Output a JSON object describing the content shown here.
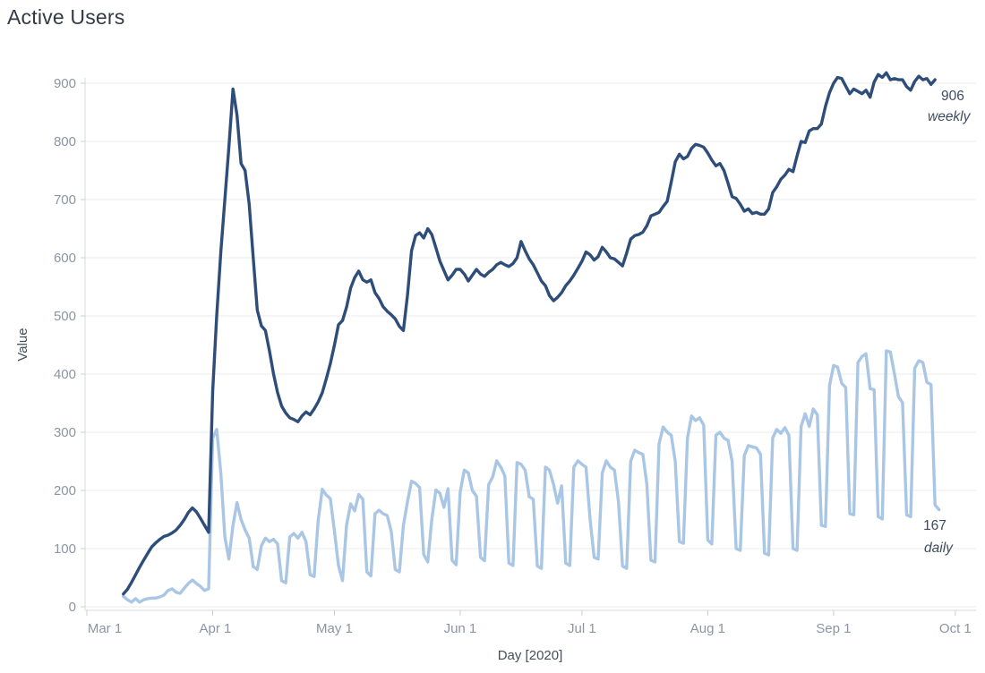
{
  "title": "Active Users",
  "annotations": {
    "weekly": {
      "value": "906",
      "label": "weekly"
    },
    "daily": {
      "value": "167",
      "label": "daily"
    }
  },
  "colors": {
    "weekly_line": "#2e4d78",
    "daily_line": "#a9c6e4",
    "grid": "#ebebeb",
    "axis_line": "#d8d8d8",
    "tick_mark": "#c9cdd3",
    "tick_text": "#8b95a3",
    "axis_title_text": "#444f5a",
    "title_text": "#333b45",
    "annotation_text": "#3f4c60"
  },
  "chart_data": {
    "type": "line",
    "title": "Active Users",
    "xlabel": "Day [2020]",
    "ylabel": "Value",
    "ylim": [
      0,
      950
    ],
    "grid": "horizontal",
    "yticks": [
      0,
      100,
      200,
      300,
      400,
      500,
      600,
      700,
      800,
      900
    ],
    "xticks": [
      {
        "label": "Mar 1",
        "day": 0,
        "label_dx": 20
      },
      {
        "label": "Apr 1",
        "day": 31,
        "label_dx": 3
      },
      {
        "label": "May 1",
        "day": 61,
        "label_dx": 0
      },
      {
        "label": "Jun 1",
        "day": 92,
        "label_dx": 0
      },
      {
        "label": "Jul 1",
        "day": 122,
        "label_dx": 0
      },
      {
        "label": "Aug 1",
        "day": 153,
        "label_dx": 0
      },
      {
        "label": "Sep 1",
        "day": 184,
        "label_dx": 0
      },
      {
        "label": "Oct 1",
        "day": 214,
        "label_dx": 0
      }
    ],
    "x_day0_date": "2020-03-01",
    "series": [
      {
        "name": "daily",
        "color": "#a9c6e4",
        "start_day_offset": 9,
        "end_value": 167,
        "values": [
          18,
          12,
          8,
          14,
          8,
          12,
          14,
          15,
          15,
          17,
          20,
          28,
          31,
          25,
          23,
          32,
          40,
          46,
          40,
          35,
          28,
          31,
          290,
          305,
          230,
          120,
          82,
          140,
          179,
          150,
          132,
          118,
          69,
          64,
          105,
          118,
          112,
          116,
          108,
          45,
          41,
          120,
          126,
          118,
          128,
          112,
          55,
          52,
          148,
          202,
          192,
          186,
          130,
          71,
          45,
          140,
          177,
          165,
          193,
          185,
          60,
          53,
          160,
          166,
          160,
          157,
          130,
          64,
          60,
          140,
          180,
          216,
          212,
          205,
          90,
          77,
          150,
          201,
          195,
          171,
          203,
          80,
          72,
          197,
          235,
          230,
          200,
          190,
          85,
          79,
          210,
          223,
          251,
          240,
          225,
          75,
          71,
          248,
          245,
          235,
          189,
          185,
          70,
          66,
          240,
          235,
          210,
          178,
          208,
          75,
          71,
          240,
          251,
          245,
          240,
          150,
          85,
          82,
          230,
          251,
          240,
          235,
          180,
          70,
          66,
          250,
          269,
          265,
          262,
          210,
          80,
          77,
          280,
          309,
          300,
          295,
          250,
          112,
          109,
          290,
          328,
          320,
          325,
          312,
          115,
          108,
          295,
          300,
          290,
          286,
          250,
          100,
          97,
          260,
          277,
          275,
          273,
          262,
          92,
          89,
          290,
          305,
          298,
          308,
          295,
          100,
          97,
          310,
          332,
          310,
          340,
          330,
          140,
          138,
          380,
          415,
          412,
          384,
          377,
          160,
          158,
          420,
          430,
          435,
          375,
          373,
          155,
          151,
          440,
          438,
          400,
          361,
          351,
          158,
          155,
          410,
          423,
          420,
          386,
          382,
          175,
          167
        ]
      },
      {
        "name": "weekly",
        "color": "#2e4d78",
        "start_day_offset": 9,
        "end_value": 906,
        "values": [
          22,
          30,
          42,
          55,
          68,
          80,
          92,
          103,
          110,
          116,
          121,
          123,
          127,
          132,
          140,
          150,
          162,
          170,
          163,
          152,
          140,
          128,
          370,
          500,
          610,
          700,
          790,
          890,
          845,
          762,
          750,
          692,
          600,
          510,
          483,
          475,
          440,
          400,
          368,
          345,
          333,
          325,
          322,
          318,
          328,
          335,
          330,
          340,
          352,
          368,
          392,
          418,
          450,
          485,
          492,
          515,
          548,
          566,
          577,
          562,
          558,
          562,
          540,
          530,
          516,
          508,
          502,
          495,
          482,
          475,
          535,
          612,
          638,
          643,
          634,
          650,
          640,
          617,
          594,
          578,
          562,
          570,
          580,
          580,
          572,
          560,
          570,
          580,
          572,
          568,
          575,
          580,
          588,
          592,
          588,
          585,
          590,
          600,
          628,
          612,
          598,
          588,
          574,
          560,
          552,
          535,
          526,
          532,
          540,
          552,
          560,
          570,
          582,
          594,
          610,
          605,
          596,
          602,
          618,
          610,
          600,
          598,
          592,
          586,
          608,
          632,
          638,
          640,
          644,
          655,
          672,
          675,
          678,
          688,
          697,
          730,
          765,
          778,
          770,
          774,
          788,
          795,
          793,
          790,
          780,
          768,
          758,
          762,
          750,
          728,
          705,
          702,
          692,
          680,
          684,
          676,
          678,
          675,
          675,
          684,
          712,
          722,
          735,
          742,
          752,
          748,
          775,
          800,
          798,
          818,
          822,
          822,
          830,
          860,
          884,
          900,
          910,
          908,
          895,
          882,
          890,
          886,
          882,
          888,
          876,
          902,
          915,
          910,
          918,
          906,
          908,
          906,
          906,
          894,
          888,
          903,
          912,
          906,
          908,
          898,
          906
        ]
      }
    ]
  }
}
